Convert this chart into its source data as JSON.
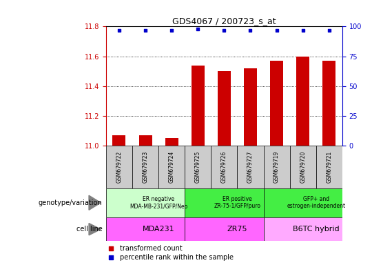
{
  "title": "GDS4067 / 200723_s_at",
  "samples": [
    "GSM679722",
    "GSM679723",
    "GSM679724",
    "GSM679725",
    "GSM679726",
    "GSM679727",
    "GSM679719",
    "GSM679720",
    "GSM679721"
  ],
  "red_values": [
    11.07,
    11.07,
    11.05,
    11.54,
    11.5,
    11.52,
    11.57,
    11.6,
    11.57
  ],
  "blue_values": [
    97,
    97,
    97,
    98,
    97,
    97,
    97,
    97,
    97
  ],
  "ylim_left": [
    11.0,
    11.8
  ],
  "ylim_right": [
    0,
    100
  ],
  "yticks_left": [
    11.0,
    11.2,
    11.4,
    11.6,
    11.8
  ],
  "yticks_right": [
    0,
    25,
    50,
    75,
    100
  ],
  "groups": [
    {
      "label": "ER negative\nMDA-MB-231/GFP/Neo",
      "cell_line": "MDA231",
      "start": 0,
      "end": 3,
      "geno_color": "#ccffcc",
      "cell_color": "#ff66ff"
    },
    {
      "label": "ER positive\nZR-75-1/GFP/puro",
      "cell_line": "ZR75",
      "start": 3,
      "end": 6,
      "geno_color": "#44ee44",
      "cell_color": "#ff66ff"
    },
    {
      "label": "GFP+ and\nestrogen-independent",
      "cell_line": "B6TC hybrid",
      "start": 6,
      "end": 9,
      "geno_color": "#44ee44",
      "cell_color": "#ffaaff"
    }
  ],
  "bar_color": "#cc0000",
  "dot_color": "#0000cc",
  "bar_bottom": 11.0,
  "left_tick_color": "#cc0000",
  "right_tick_color": "#0000cc",
  "sample_box_color": "#cccccc",
  "legend_items": [
    {
      "label": "transformed count",
      "color": "#cc0000"
    },
    {
      "label": "percentile rank within the sample",
      "color": "#0000cc"
    }
  ],
  "left_labels": [
    "genotype/variation",
    "cell line"
  ],
  "geno_label_fontsize": 6,
  "cell_label_fontsize": 8
}
